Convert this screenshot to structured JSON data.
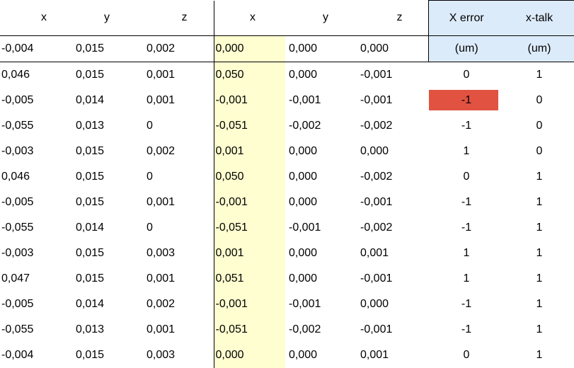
{
  "headers": {
    "left": [
      "x",
      "y",
      "z"
    ],
    "right": [
      "x",
      "y",
      "z"
    ],
    "x_error": "X error",
    "x_talk": "x-talk"
  },
  "units_row": {
    "left": [
      "-0,004",
      "0,015",
      "0,002"
    ],
    "right": [
      "0,000",
      "0,000",
      "0,000"
    ],
    "x_error_unit": "(um)",
    "x_talk_unit": "(um)"
  },
  "rows": [
    {
      "l": [
        "0,046",
        "0,015",
        "0,001"
      ],
      "r": [
        "0,050",
        "0,000",
        "-0,001"
      ],
      "err": "0",
      "talk": "1",
      "err_highlight": false
    },
    {
      "l": [
        "-0,005",
        "0,014",
        "0,001"
      ],
      "r": [
        "-0,001",
        "-0,001",
        "-0,001"
      ],
      "err": "-1",
      "talk": "0",
      "err_highlight": true
    },
    {
      "l": [
        "-0,055",
        "0,013",
        "0"
      ],
      "r": [
        "-0,051",
        "-0,002",
        "-0,002"
      ],
      "err": "-1",
      "talk": "0",
      "err_highlight": false
    },
    {
      "l": [
        "-0,003",
        "0,015",
        "0,002"
      ],
      "r": [
        "0,001",
        "0,000",
        "0,000"
      ],
      "err": "1",
      "talk": "0",
      "err_highlight": false
    },
    {
      "l": [
        "0,046",
        "0,015",
        "0"
      ],
      "r": [
        "0,050",
        "0,000",
        "-0,002"
      ],
      "err": "0",
      "talk": "1",
      "err_highlight": false
    },
    {
      "l": [
        "-0,005",
        "0,015",
        "0,001"
      ],
      "r": [
        "-0,001",
        "0,000",
        "-0,001"
      ],
      "err": "-1",
      "talk": "1",
      "err_highlight": false
    },
    {
      "l": [
        "-0,055",
        "0,014",
        "0"
      ],
      "r": [
        "-0,051",
        "-0,001",
        "-0,002"
      ],
      "err": "-1",
      "talk": "1",
      "err_highlight": false
    },
    {
      "l": [
        "-0,003",
        "0,015",
        "0,003"
      ],
      "r": [
        "0,001",
        "0,000",
        "0,001"
      ],
      "err": "1",
      "talk": "1",
      "err_highlight": false
    },
    {
      "l": [
        "0,047",
        "0,015",
        "0,001"
      ],
      "r": [
        "0,051",
        "0,000",
        "-0,001"
      ],
      "err": "1",
      "talk": "1",
      "err_highlight": false
    },
    {
      "l": [
        "-0,005",
        "0,014",
        "0,002"
      ],
      "r": [
        "-0,001",
        "-0,001",
        "0,000"
      ],
      "err": "-1",
      "talk": "1",
      "err_highlight": false
    },
    {
      "l": [
        "-0,055",
        "0,013",
        "0,001"
      ],
      "r": [
        "-0,051",
        "-0,002",
        "-0,001"
      ],
      "err": "-1",
      "talk": "1",
      "err_highlight": false
    },
    {
      "l": [
        "-0,004",
        "0,015",
        "0,003"
      ],
      "r": [
        "0,000",
        "0,000",
        "0,001"
      ],
      "err": "0",
      "talk": "1",
      "err_highlight": false
    }
  ],
  "colors": {
    "highlight_column": "#fefed0",
    "header_blue": "#dcebfa",
    "error_red": "#e15241"
  }
}
